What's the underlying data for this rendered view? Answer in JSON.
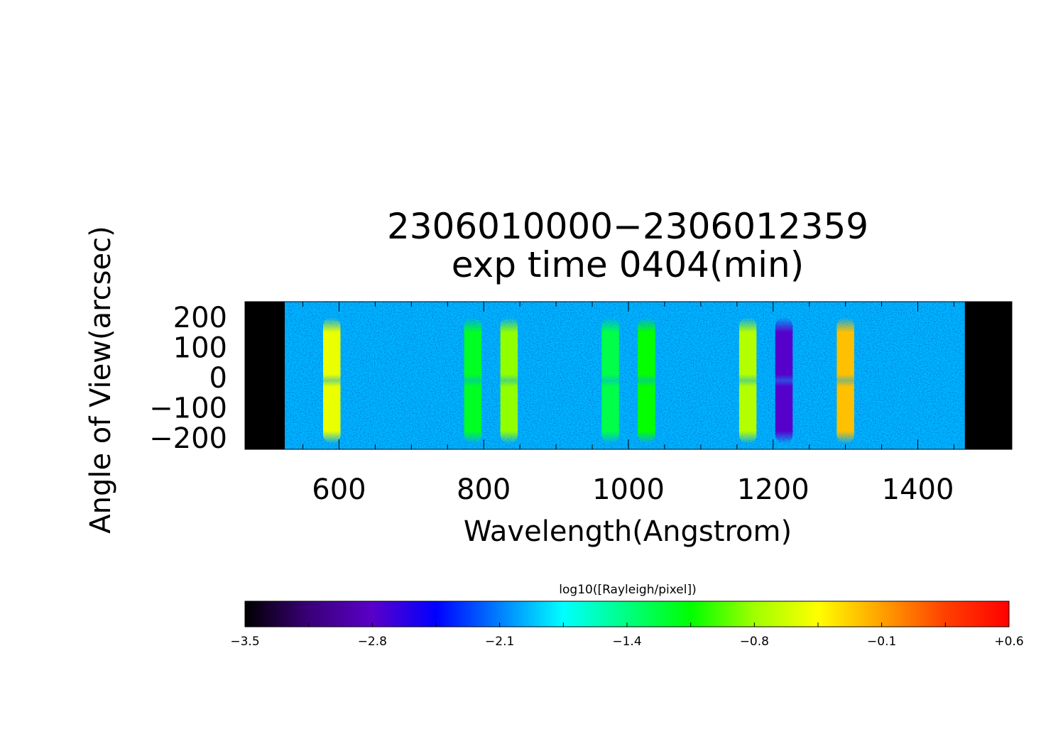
{
  "chart_data": {
    "type": "heatmap",
    "title": "2306010000−2306012359",
    "subtitle": "exp time 0404(min)",
    "xlabel": "Wavelength(Angstrom)",
    "ylabel": "Angle of View(arcsec)",
    "xlim": [
      470,
      1530
    ],
    "ylim": [
      -240,
      250
    ],
    "x_ticks": [
      600,
      800,
      1000,
      1200,
      1400
    ],
    "x_tick_labels": [
      "600",
      "800",
      "1000",
      "1200",
      "1400"
    ],
    "y_ticks": [
      200,
      100,
      0,
      -100,
      -200
    ],
    "y_tick_labels": [
      "200",
      "100",
      "0",
      "−100",
      "−200"
    ],
    "colorbar": {
      "label": "log10([Rayleigh/pixel])",
      "range": [
        -3.5,
        0.6
      ],
      "tick_labels": [
        "−3.5",
        "−2.8",
        "−2.1",
        "−1.4",
        "−0.8",
        "−0.1",
        "+0.6"
      ],
      "colormap": [
        "#000000",
        "#3a0078",
        "#5a00c8",
        "#0000ff",
        "#0080ff",
        "#00ffff",
        "#00ff80",
        "#00ff00",
        "#a0ff00",
        "#ffff00",
        "#ffa000",
        "#ff4000",
        "#ff0000"
      ]
    },
    "detector_range": [
      525,
      1465
    ],
    "background_level": -2.0,
    "emission_features": [
      {
        "wavelength": 590,
        "level": -0.5
      },
      {
        "wavelength": 785,
        "level": -1.2
      },
      {
        "wavelength": 835,
        "level": -0.8
      },
      {
        "wavelength": 975,
        "level": -1.3
      },
      {
        "wavelength": 1025,
        "level": -1.1
      },
      {
        "wavelength": 1165,
        "level": -0.7
      },
      {
        "wavelength": 1215,
        "level": -2.8
      },
      {
        "wavelength": 1300,
        "level": -0.2
      }
    ]
  }
}
